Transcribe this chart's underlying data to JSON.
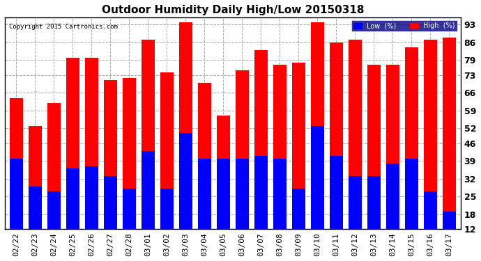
{
  "title": "Outdoor Humidity Daily High/Low 20150318",
  "copyright": "Copyright 2015 Cartronics.com",
  "dates": [
    "02/22",
    "02/23",
    "02/24",
    "02/25",
    "02/26",
    "02/27",
    "02/28",
    "03/01",
    "03/02",
    "03/03",
    "03/04",
    "03/05",
    "03/06",
    "03/07",
    "03/08",
    "03/09",
    "03/10",
    "03/11",
    "03/12",
    "03/13",
    "03/14",
    "03/15",
    "03/16",
    "03/17"
  ],
  "high": [
    64,
    53,
    62,
    80,
    80,
    71,
    72,
    87,
    74,
    94,
    70,
    57,
    75,
    83,
    77,
    78,
    94,
    86,
    87,
    77,
    77,
    84,
    87,
    88
  ],
  "low": [
    40,
    29,
    27,
    36,
    37,
    33,
    28,
    43,
    28,
    50,
    40,
    40,
    40,
    41,
    40,
    28,
    53,
    41,
    33,
    33,
    38,
    40,
    27,
    19
  ],
  "yticks": [
    12,
    18,
    25,
    32,
    39,
    46,
    52,
    59,
    66,
    73,
    79,
    86,
    93
  ],
  "ymin": 12,
  "ymax": 96,
  "bar_width": 0.7,
  "low_color": "#0000ff",
  "high_color": "#ff0000",
  "bg_color": "#ffffff",
  "grid_color": "#aaaaaa",
  "title_fontsize": 11,
  "tick_fontsize": 8,
  "legend_bg": "#000080"
}
